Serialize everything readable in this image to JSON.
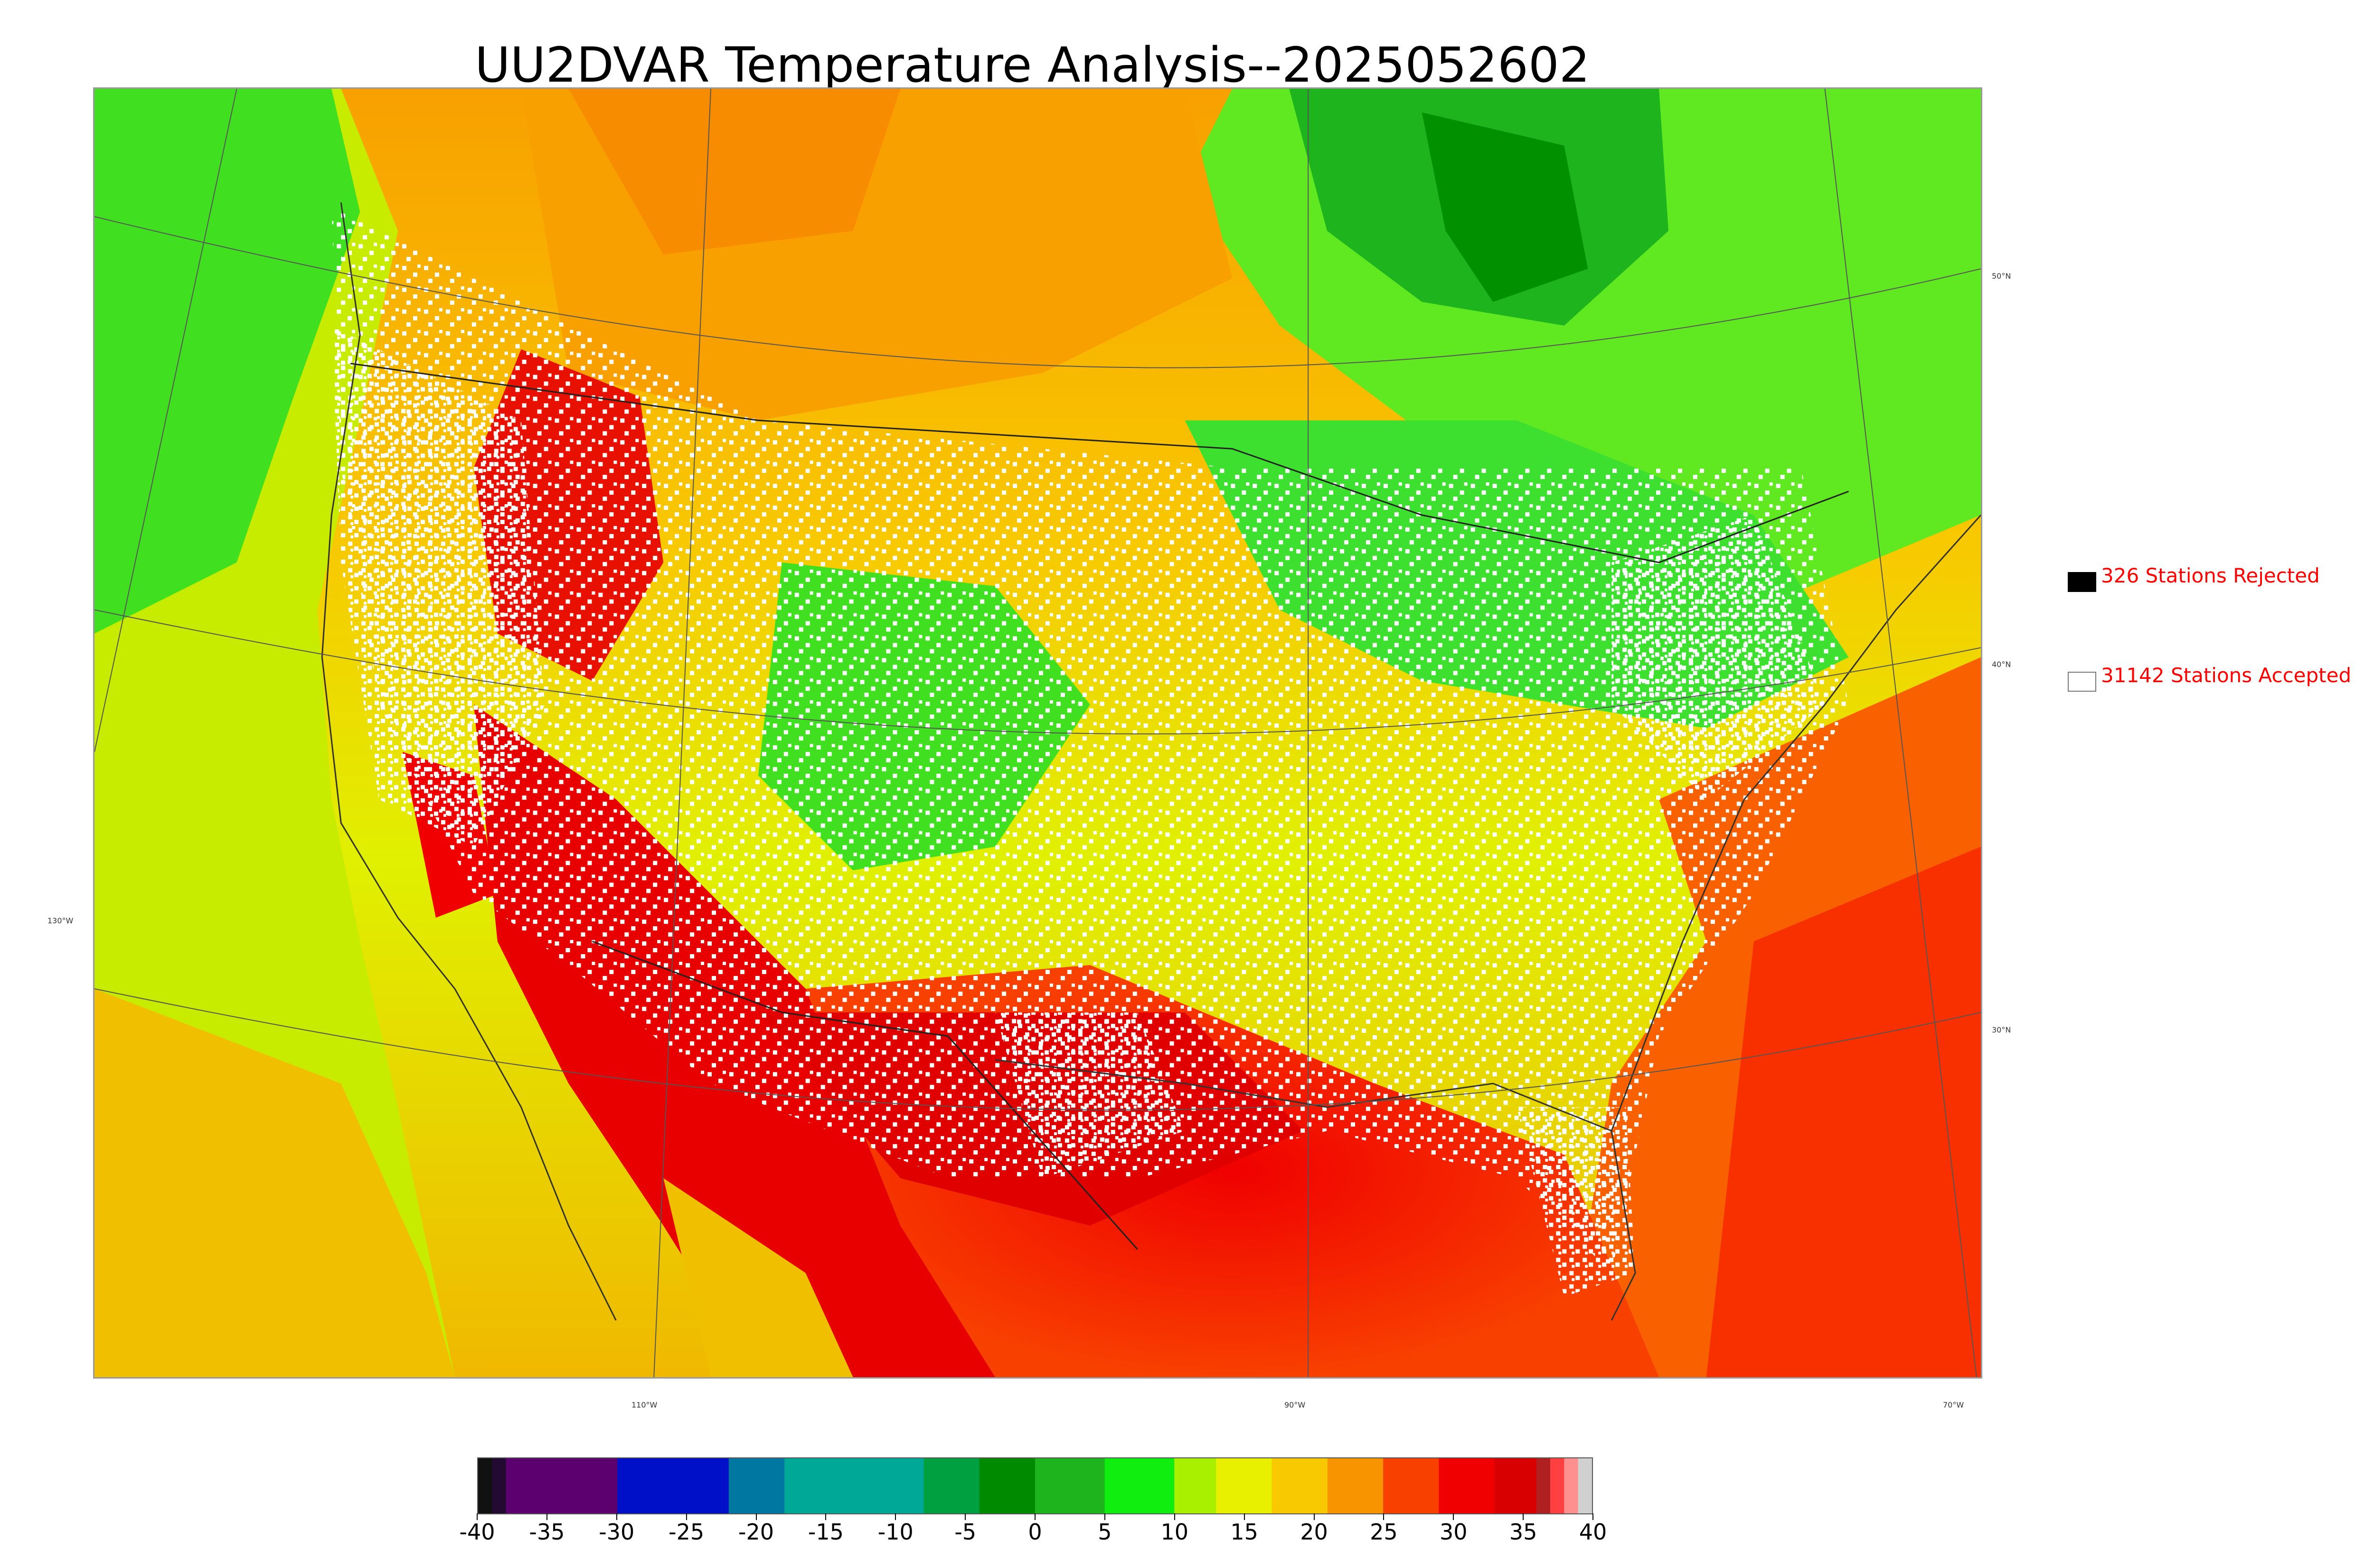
{
  "title": "UU2DVAR Temperature Analysis--2025052602",
  "legend": {
    "rejected": {
      "label": "326 Stations Rejected",
      "swatch_color": "#000000"
    },
    "accepted": {
      "label": "31142 Stations Accepted",
      "swatch_color": "#ffffff"
    }
  },
  "graticule": {
    "latitudes": [
      "50°N",
      "40°N",
      "30°N"
    ],
    "longitudes": [
      "130°W",
      "110°W",
      "90°W",
      "70°W"
    ]
  },
  "colorbar": {
    "ticks": [
      "-40",
      "-35",
      "-30",
      "-25",
      "-20",
      "-15",
      "-10",
      "-5",
      "0",
      "5",
      "10",
      "15",
      "20",
      "25",
      "30",
      "35",
      "40"
    ],
    "range": [
      -40,
      40
    ],
    "segments": [
      {
        "from": -40,
        "to": -39,
        "color": "#111111"
      },
      {
        "from": -39,
        "to": -38,
        "color": "#220a33"
      },
      {
        "from": -38,
        "to": -30,
        "color": "#5c0070"
      },
      {
        "from": -30,
        "to": -22,
        "color": "#0010c8"
      },
      {
        "from": -22,
        "to": -18,
        "color": "#0077a0"
      },
      {
        "from": -18,
        "to": -8,
        "color": "#00a898"
      },
      {
        "from": -8,
        "to": -4,
        "color": "#00a040"
      },
      {
        "from": -4,
        "to": 0,
        "color": "#008a00"
      },
      {
        "from": 0,
        "to": 5,
        "color": "#1db41d"
      },
      {
        "from": 5,
        "to": 10,
        "color": "#10ee10"
      },
      {
        "from": 10,
        "to": 13,
        "color": "#a8f000"
      },
      {
        "from": 13,
        "to": 17,
        "color": "#e8f000"
      },
      {
        "from": 17,
        "to": 21,
        "color": "#f8c800"
      },
      {
        "from": 21,
        "to": 25,
        "color": "#f89400"
      },
      {
        "from": 25,
        "to": 29,
        "color": "#f84000"
      },
      {
        "from": 29,
        "to": 33,
        "color": "#f00000"
      },
      {
        "from": 33,
        "to": 36,
        "color": "#d80000"
      },
      {
        "from": 36,
        "to": 37,
        "color": "#b02020"
      },
      {
        "from": 37,
        "to": 38,
        "color": "#ff4040"
      },
      {
        "from": 38,
        "to": 39,
        "color": "#ff9090"
      },
      {
        "from": 39,
        "to": 40,
        "color": "#d0d0d0"
      }
    ]
  }
}
